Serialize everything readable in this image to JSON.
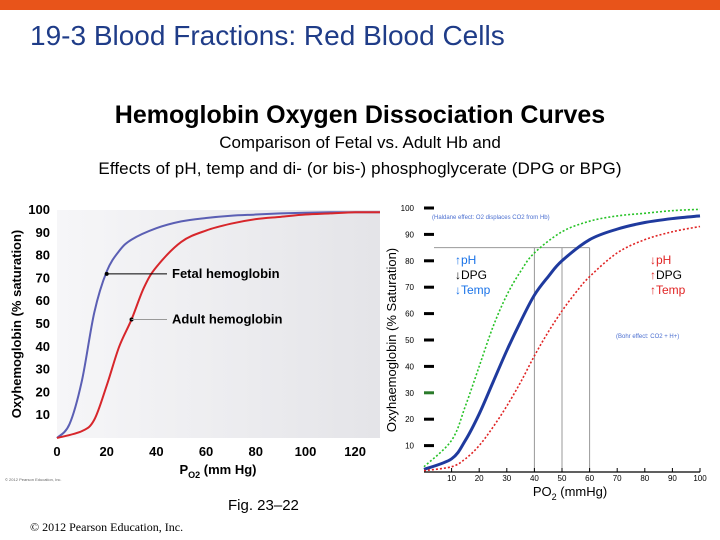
{
  "slide": {
    "title_prefix": "19-3 Blood Fractions:",
    "title_highlight": "Red Blood Cells",
    "heading": "Hemoglobin Oxygen Dissociation Curves",
    "subtitle_line1": "Comparison of Fetal vs. Adult Hb and",
    "subtitle_line2": "Effects of pH, temp and di- (or bis-) phosphoglycerate (DPG or BPG)",
    "figure_caption": "Fig. 23–22",
    "copyright": "© 2012 Pearson Education, Inc.",
    "colors": {
      "title": "#1f3c88",
      "accent_bar": "#e8541a"
    }
  },
  "chart_data": [
    {
      "type": "line",
      "ylabel": "Oxyhemoglobin (% saturation)",
      "xlabel_main": "P",
      "xlabel_sub": "O2",
      "xlabel_unit": " (mm Hg)",
      "xlim": [
        0,
        130
      ],
      "ylim": [
        0,
        100
      ],
      "x_ticks": [
        "0",
        "20",
        "40",
        "60",
        "80",
        "100",
        "120"
      ],
      "y_ticks": [
        "10",
        "20",
        "30",
        "40",
        "50",
        "60",
        "70",
        "80",
        "90",
        "100"
      ],
      "copyright_small": "© 2012 Pearson Education, Inc.",
      "grid": false,
      "series": [
        {
          "name": "Fetal hemoglobin",
          "color": "#5b5fb4",
          "x": [
            0,
            5,
            10,
            15,
            20,
            25,
            30,
            40,
            50,
            60,
            70,
            80,
            90,
            100,
            110,
            120,
            130
          ],
          "values": [
            0,
            6,
            25,
            55,
            73,
            82,
            87,
            92,
            95,
            96.5,
            97.5,
            98,
            98.5,
            98.8,
            99,
            99,
            99
          ]
        },
        {
          "name": "Adult hemoglobin",
          "color": "#d7262b",
          "x": [
            0,
            10,
            15,
            20,
            25,
            30,
            35,
            40,
            50,
            60,
            70,
            80,
            90,
            100,
            110,
            120,
            130
          ],
          "values": [
            0,
            3,
            8,
            23,
            40,
            52,
            66,
            75,
            86,
            91,
            94,
            96,
            97,
            98,
            98.5,
            99,
            99
          ]
        }
      ],
      "annotations": [
        {
          "label": "Fetal hemoglobin",
          "x": 20,
          "y": 72
        },
        {
          "label": "Adult hemoglobin",
          "x": 30,
          "y": 52
        }
      ]
    },
    {
      "type": "line",
      "ylabel": "Oxyhaemoglobin (% Saturation)",
      "xlabel_main": "PO",
      "xlabel_sub": "2",
      "xlabel_unit": " (mmHg)",
      "xlim": [
        0,
        100
      ],
      "ylim": [
        0,
        100
      ],
      "x_ticks": [
        "10",
        "20",
        "30",
        "40",
        "50",
        "60",
        "70",
        "80",
        "90",
        "100"
      ],
      "y_ticks": [
        "10",
        "20",
        "30",
        "40",
        "50",
        "60",
        "70",
        "80",
        "90",
        "100"
      ],
      "grid": false,
      "reference_lines": {
        "x": [
          40,
          50,
          60
        ],
        "y": 85
      },
      "note_top": "(Haldane effect: O2 displaces CO2 from Hb)",
      "note_right": "(Bohr effect: CO2 + H+)",
      "left_shift": {
        "items": [
          {
            "arrow": "↑",
            "text": "pH"
          },
          {
            "arrow": "↓",
            "text": "DPG"
          },
          {
            "arrow": "↓",
            "text": "Temp"
          }
        ],
        "color": "#1a73e8"
      },
      "right_shift": {
        "items": [
          {
            "arrow": "↓",
            "text": "pH"
          },
          {
            "arrow": "↑",
            "text": "DPG"
          },
          {
            "arrow": "↑",
            "text": "Temp"
          }
        ],
        "color": "#e02424"
      },
      "series": [
        {
          "name": "",
          "color": "#27c227",
          "dashed": true,
          "x": [
            0,
            10,
            15,
            20,
            25,
            30,
            35,
            40,
            50,
            60,
            70,
            80,
            90,
            100
          ],
          "values": [
            2,
            12,
            25,
            40,
            55,
            67,
            76,
            83,
            91,
            95,
            97,
            98,
            99,
            99.5
          ]
        },
        {
          "name": "",
          "color": "#1f3a9e",
          "dashed": false,
          "x": [
            0,
            10,
            15,
            20,
            25,
            30,
            35,
            40,
            45,
            50,
            60,
            70,
            80,
            90,
            100
          ],
          "values": [
            1,
            5,
            12,
            22,
            34,
            46,
            57,
            67,
            74,
            80,
            88,
            92,
            94.5,
            96,
            97
          ]
        },
        {
          "name": "",
          "color": "#e02424",
          "dashed": true,
          "x": [
            0,
            10,
            15,
            20,
            25,
            30,
            35,
            40,
            45,
            50,
            55,
            60,
            70,
            80,
            90,
            100
          ],
          "values": [
            0.5,
            2,
            5,
            10,
            17,
            25,
            34,
            44,
            53,
            61,
            68,
            74,
            83,
            88,
            91,
            93
          ]
        }
      ]
    }
  ]
}
